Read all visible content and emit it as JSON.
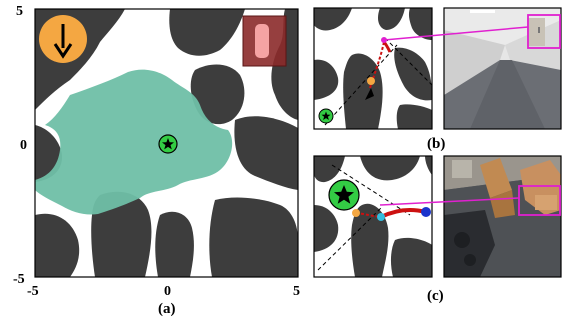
{
  "panel_a": {
    "label": "(a)",
    "x_ticks": [
      "-5",
      "0",
      "5"
    ],
    "y_ticks": [
      "5",
      "0",
      "-5"
    ],
    "colors": {
      "obstacle": "#3d3d3d",
      "free": "#ffffff",
      "explored": "#6fbfa7",
      "heading_disc": "#f4a742",
      "goal": "#33cc44",
      "target_box": "#8b2a2a"
    },
    "icons": [
      "heading-arrow-icon",
      "goal-star-icon"
    ]
  },
  "panel_b": {
    "label": "(b)",
    "colors": {
      "path": "#cc1111",
      "waypoint": "#f4a742",
      "link": "#e020d0"
    },
    "icons": [
      "goal-star-icon",
      "agent-arrow-icon"
    ]
  },
  "panel_c": {
    "label": "(c)",
    "colors": {
      "path": "#cc1111",
      "agent": "#1a33cc",
      "waypoint_a": "#f4a742",
      "waypoint_b": "#33bbdd",
      "link": "#e020d0"
    },
    "icons": [
      "goal-star-icon"
    ]
  }
}
